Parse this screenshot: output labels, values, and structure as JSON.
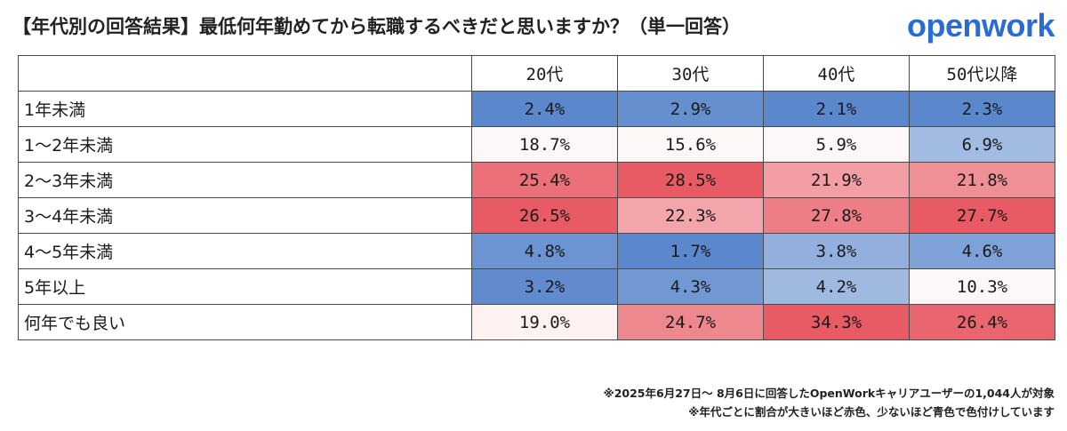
{
  "title": "【年代別の回答結果】最低何年勤めてから転職するべきだと思いますか？（単一回答）",
  "logo": "openwork",
  "notes": [
    "※2025年6月27日～ 8月6日に回答したOpenWorkキャリアユーザーの1,044人が対象",
    "※年代ごとに割合が大きいほど赤色、少ないほど青色で色付けしています"
  ],
  "colors": {
    "high": "#e85a64",
    "mid": "#ffffff",
    "low": "#5b87cc"
  },
  "chart_data": {
    "type": "heatmap",
    "columns": [
      "20代",
      "30代",
      "40代",
      "50代以降"
    ],
    "rows": [
      {
        "label": "1年未満",
        "values": [
          2.4,
          2.9,
          2.1,
          2.3
        ]
      },
      {
        "label": "1～2年未満",
        "values": [
          18.7,
          15.6,
          5.9,
          6.9
        ]
      },
      {
        "label": "2～3年未満",
        "values": [
          25.4,
          28.5,
          21.9,
          21.8
        ]
      },
      {
        "label": "3～4年未満",
        "values": [
          26.5,
          22.3,
          27.8,
          27.7
        ]
      },
      {
        "label": "4～5年未満",
        "values": [
          4.8,
          1.7,
          3.8,
          4.6
        ]
      },
      {
        "label": "5年以上",
        "values": [
          3.2,
          4.3,
          4.2,
          10.3
        ]
      },
      {
        "label": "何年でも良い",
        "values": [
          19.0,
          24.7,
          34.3,
          26.4
        ]
      }
    ],
    "unit": "%"
  }
}
